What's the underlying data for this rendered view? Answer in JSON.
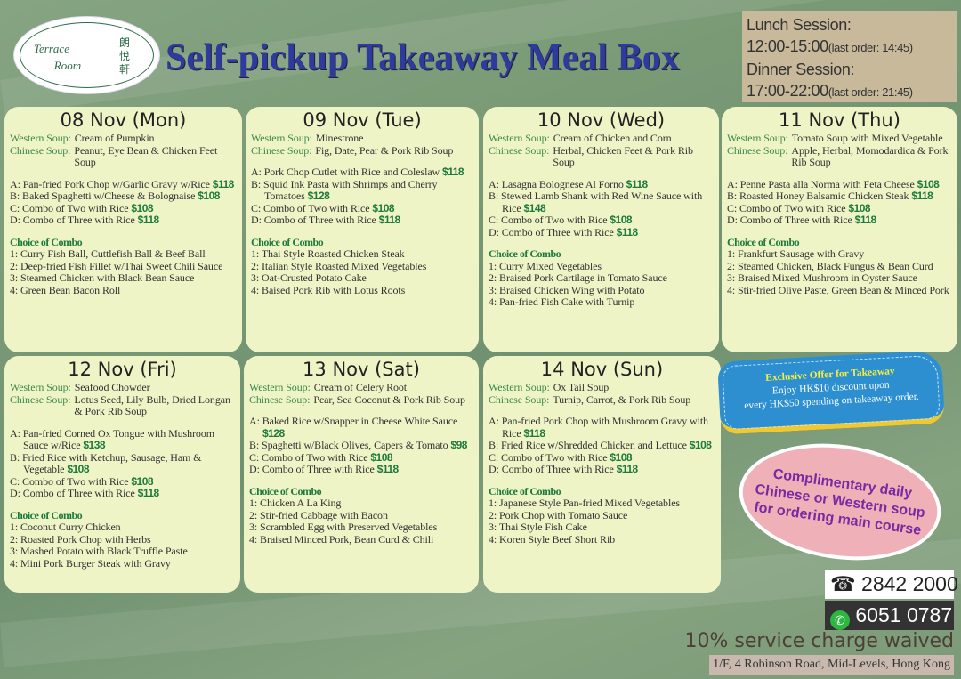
{
  "logo": {
    "en_line1": "Terrace",
    "en_line2": "Room",
    "zh": "朗悅軒"
  },
  "title": "Self-pickup Takeaway Meal Box",
  "sessions": {
    "lunch_label": "Lunch Session:",
    "lunch_time": "12:00-15:00",
    "lunch_last": "(last order: 14:45)",
    "dinner_label": "Dinner Session:",
    "dinner_time": "17:00-22:00",
    "dinner_last": "(last order: 21:45)"
  },
  "labels": {
    "western": "Western Soup:",
    "chinese": "Chinese Soup:",
    "combo_title": "Choice of Combo"
  },
  "days": [
    {
      "date": "08 Nov (Mon)",
      "western": "Cream of Pumpkin",
      "chinese": "Peanut, Eye Bean & Chicken Feet Soup",
      "mains": [
        {
          "text": "A: Pan-fried Pork Chop w/Garlic Gravy w/Rice",
          "price": "$118"
        },
        {
          "text": "B: Baked Spaghetti w/Cheese & Bolognaise",
          "price": "$108"
        },
        {
          "text": "C: Combo of Two with Rice",
          "price": "$108"
        },
        {
          "text": "D: Combo of Three with Rice",
          "price": "$118"
        }
      ],
      "combos": [
        "1: Curry Fish Ball, Cuttlefish Ball & Beef Ball",
        "2: Deep-fried Fish Fillet w/Thai Sweet Chili Sauce",
        "3: Steamed Chicken with Black Bean Sauce",
        "4: Green Bean Bacon Roll"
      ]
    },
    {
      "date": "09 Nov (Tue)",
      "western": "Minestrone",
      "chinese": "Fig, Date, Pear & Pork Rib Soup",
      "mains": [
        {
          "text": "A: Pork Chop Cutlet with Rice and Coleslaw",
          "price": "$118"
        },
        {
          "text": "B: Squid Ink Pasta with Shrimps and Cherry Tomatoes",
          "price": "$128"
        },
        {
          "text": "C: Combo of Two with Rice",
          "price": "$108"
        },
        {
          "text": "D: Combo of Three with Rice",
          "price": "$118"
        }
      ],
      "combos": [
        "1: Thai Style Roasted Chicken Steak",
        "2: Italian Style Roasted Mixed Vegetables",
        "3: Oat-Crusted Potato Cake",
        "4: Baised Pork Rib with Lotus Roots"
      ]
    },
    {
      "date": "10 Nov (Wed)",
      "western": "Cream of Chicken and Corn",
      "chinese": "Herbal, Chicken Feet & Pork Rib Soup",
      "mains": [
        {
          "text": "A: Lasagna Bolognese Al Forno",
          "price": "$118"
        },
        {
          "text": "B: Stewed Lamb Shank with Red Wine Sauce with Rice",
          "price": "$148"
        },
        {
          "text": "C: Combo of Two with Rice",
          "price": "$108"
        },
        {
          "text": "D: Combo of Three with Rice",
          "price": "$118"
        }
      ],
      "combos": [
        "1: Curry Mixed Vegetables",
        "2: Braised Pork Cartilage in Tomato Sauce",
        "3: Braised Chicken Wing with Potato",
        "4: Pan-fried Fish Cake with Turnip"
      ]
    },
    {
      "date": "11 Nov (Thu)",
      "western": "Tomato Soup with Mixed Vegetable",
      "chinese": "Apple, Herbal, Momodardica & Pork Rib Soup",
      "mains": [
        {
          "text": "A: Penne Pasta alla Norma with Feta Cheese",
          "price": "$108"
        },
        {
          "text": "B: Roasted Honey Balsamic Chicken Steak",
          "price": "$118"
        },
        {
          "text": "C: Combo of Two with Rice",
          "price": "$108"
        },
        {
          "text": "D: Combo of Three with Rice",
          "price": "$118"
        }
      ],
      "combos": [
        "1: Frankfurt Sausage with Gravy",
        "2: Steamed Chicken, Black Fungus & Bean Curd",
        "3: Braised Mixed Mushroom in Oyster Sauce",
        "4: Stir-fried Olive Paste, Green Bean & Minced Pork"
      ]
    },
    {
      "date": "12 Nov (Fri)",
      "western": "Seafood Chowder",
      "chinese": "Lotus Seed, Lily Bulb, Dried Longan & Pork Rib Soup",
      "mains": [
        {
          "text": "A: Pan-fried Corned Ox Tongue with Mushroom Sauce w/Rice",
          "price": "$138"
        },
        {
          "text": "B: Fried Rice with Ketchup, Sausage, Ham & Vegetable",
          "price": "$108"
        },
        {
          "text": "C: Combo of Two with Rice",
          "price": "$108"
        },
        {
          "text": "D: Combo of Three with Rice",
          "price": "$118"
        }
      ],
      "combos": [
        "1: Coconut Curry Chicken",
        "2: Roasted Pork Chop with Herbs",
        "3: Mashed Potato with Black Truffle Paste",
        "4: Mini Pork Burger Steak with Gravy"
      ]
    },
    {
      "date": "13 Nov (Sat)",
      "western": "Cream of Celery Root",
      "chinese": "Pear, Sea Coconut & Pork Rib Soup",
      "mains": [
        {
          "text": "A: Baked Rice w/Snapper in Cheese White Sauce",
          "price": "$128"
        },
        {
          "text": "B: Spaghetti w/Black Olives, Capers & Tomato",
          "price": "$98"
        },
        {
          "text": "C: Combo of Two with Rice",
          "price": "$108"
        },
        {
          "text": "D: Combo of Three with Rice",
          "price": "$118"
        }
      ],
      "combos": [
        "1: Chicken A La King",
        "2: Stir-fried Cabbage with Bacon",
        "3: Scrambled Egg with Preserved Vegetables",
        "4: Braised Minced Pork, Bean Curd & Chili"
      ]
    },
    {
      "date": "14 Nov (Sun)",
      "western": "Ox Tail Soup",
      "chinese": "Turnip, Carrot, & Pork Rib Soup",
      "mains": [
        {
          "text": "A: Pan-fried Pork Chop with Mushroom Gravy with Rice",
          "price": "$118"
        },
        {
          "text": "B: Fried Rice w/Shredded Chicken and Lettuce",
          "price": "$108"
        },
        {
          "text": "C: Combo of Two with Rice",
          "price": "$108"
        },
        {
          "text": "D: Combo of Three with Rice",
          "price": "$118"
        }
      ],
      "combos": [
        "1: Japanese Style Pan-fried Mixed Vegetables",
        "2: Pork Chop with Tomato Sauce",
        "3: Thai Style Fish Cake",
        "4: Koren Style Beef Short Rib"
      ]
    }
  ],
  "offer": {
    "title": "Exclusive Offer for Takeaway",
    "line1": "Enjoy HK$10 discount upon",
    "line2": "every HK$50 spending on takeaway order."
  },
  "cloud": {
    "line1": "Complimentary daily",
    "line2": "Chinese or Western soup",
    "line3": "for ordering main course"
  },
  "contact": {
    "phone_icon": "telephone-icon",
    "phone": "2842 2000",
    "whatsapp_icon": "whatsapp-icon",
    "whatsapp": "6051 0787"
  },
  "service": "10% service charge waived",
  "address": "1/F, 4 Robinson Road, Mid-Levels, Hong Kong",
  "colors": {
    "title": "#2e3a9e",
    "label": "#3c8a4c",
    "price": "#1e7a3c",
    "card": "#eef4c6",
    "background": "#7a9a76"
  }
}
